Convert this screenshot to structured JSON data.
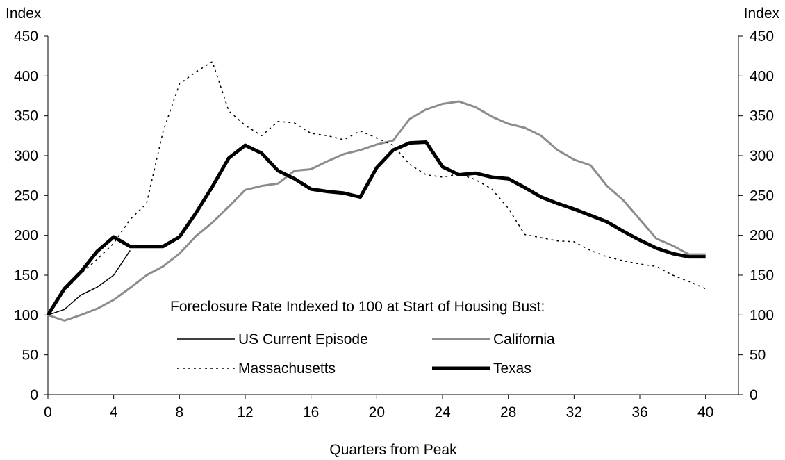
{
  "chart_data": {
    "type": "line",
    "y_label": "Index",
    "y2_label": "Index",
    "x_label": "Quarters from Peak",
    "legend_title": "Foreclosure Rate Indexed to 100 at Start of Housing Bust:",
    "x": [
      0,
      1,
      2,
      3,
      4,
      5,
      6,
      7,
      8,
      9,
      10,
      11,
      12,
      13,
      14,
      15,
      16,
      17,
      18,
      19,
      20,
      21,
      22,
      23,
      24,
      25,
      26,
      27,
      28,
      29,
      30,
      31,
      32,
      33,
      34,
      35,
      36,
      37,
      38,
      39,
      40
    ],
    "xlim": [
      0,
      42
    ],
    "xticks": [
      0,
      4,
      8,
      12,
      16,
      20,
      24,
      28,
      32,
      36,
      40
    ],
    "ylim": [
      0,
      450
    ],
    "yticks": [
      0,
      50,
      100,
      150,
      200,
      250,
      300,
      350,
      400,
      450
    ],
    "y2lim": [
      0,
      450
    ],
    "y2ticks": [
      0,
      50,
      100,
      150,
      200,
      250,
      300,
      350,
      400,
      450
    ],
    "series": [
      {
        "name": "US Current Episode",
        "color": "#000000",
        "width": 1.5,
        "dash": "solid",
        "values": [
          100,
          107,
          125,
          135,
          150,
          181,
          null,
          null,
          null,
          null,
          null,
          null,
          null,
          null,
          null,
          null,
          null,
          null,
          null,
          null,
          null,
          null,
          null,
          null,
          null,
          null,
          null,
          null,
          null,
          null,
          null,
          null,
          null,
          null,
          null,
          null,
          null,
          null,
          null,
          null,
          null
        ]
      },
      {
        "name": "California",
        "color": "#8c8c8c",
        "width": 3,
        "dash": "solid",
        "values": [
          100,
          93,
          100,
          108,
          119,
          134,
          150,
          161,
          177,
          199,
          216,
          236,
          257,
          262,
          265,
          281,
          283,
          293,
          302,
          307,
          314,
          319,
          346,
          358,
          365,
          368,
          361,
          349,
          340,
          335,
          325,
          307,
          295,
          288,
          262,
          244,
          220,
          196,
          187,
          176,
          176
        ]
      },
      {
        "name": "Massachusetts",
        "color": "#000000",
        "width": 1.5,
        "dash": "dotted",
        "values": [
          100,
          130,
          152,
          170,
          190,
          220,
          240,
          330,
          390,
          405,
          418,
          356,
          338,
          325,
          343,
          341,
          328,
          325,
          320,
          331,
          322,
          313,
          289,
          276,
          273,
          277,
          270,
          258,
          234,
          201,
          197,
          193,
          192,
          181,
          173,
          168,
          164,
          161,
          150,
          142,
          133
        ]
      },
      {
        "name": "Texas",
        "color": "#000000",
        "width": 5,
        "dash": "solid",
        "values": [
          100,
          133,
          154,
          180,
          198,
          186,
          186,
          186,
          198,
          228,
          261,
          297,
          313,
          303,
          281,
          271,
          258,
          255,
          253,
          248,
          285,
          307,
          316,
          317,
          286,
          276,
          278,
          273,
          271,
          260,
          248,
          240,
          233,
          225,
          217,
          205,
          194,
          184,
          177,
          173,
          173
        ]
      }
    ]
  }
}
